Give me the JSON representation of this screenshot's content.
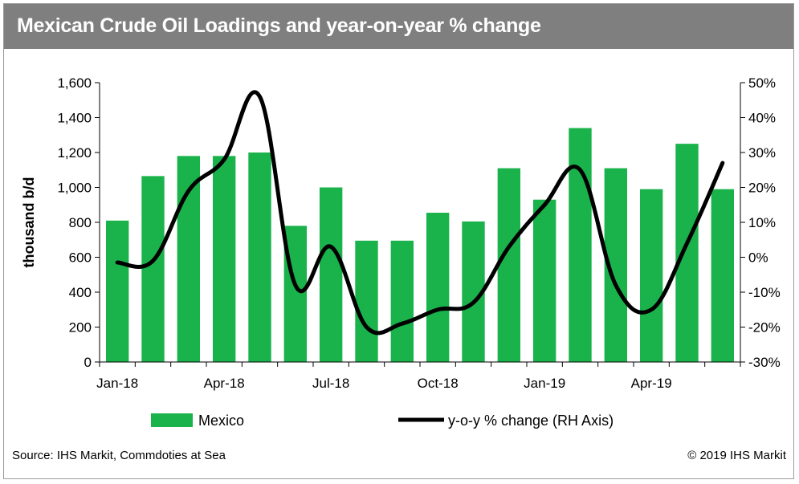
{
  "title": "Mexican Crude Oil  Loadings and year-on-year % change",
  "source": "Source: IHS Markit, Commdoties at Sea",
  "copyright": "© 2019 IHS Markit",
  "colors": {
    "bar": "#1ab24b",
    "line": "#000000",
    "title_bg": "#7f7f7f"
  },
  "chart_data": {
    "type": "bar",
    "ylabel": "thousand b/d",
    "ylim": [
      0,
      1600
    ],
    "y_ticks": [
      "0",
      "200",
      "400",
      "600",
      "800",
      "1,000",
      "1,200",
      "1,400",
      "1,600"
    ],
    "y2lim": [
      -30,
      50
    ],
    "y2_ticks": [
      "-30%",
      "-20%",
      "-10%",
      "0%",
      "10%",
      "20%",
      "30%",
      "40%",
      "50%"
    ],
    "x_tick_labels": [
      "Jan-18",
      "Apr-18",
      "Jul-18",
      "Oct-18",
      "Jan-19",
      "Apr-19"
    ],
    "categories": [
      "Jan-18",
      "Feb-18",
      "Mar-18",
      "Apr-18",
      "May-18",
      "Jun-18",
      "Jul-18",
      "Aug-18",
      "Sep-18",
      "Oct-18",
      "Nov-18",
      "Dec-18",
      "Jan-19",
      "Feb-19",
      "Mar-19",
      "Apr-19",
      "May-19",
      "Jun-19"
    ],
    "legend_position": "bottom",
    "series": [
      {
        "name": "Mexico",
        "type": "bar",
        "axis": "left",
        "values": [
          810,
          1065,
          1180,
          1180,
          1200,
          780,
          1000,
          695,
          695,
          855,
          805,
          1110,
          930,
          1340,
          1110,
          990,
          1250,
          990
        ]
      },
      {
        "name": "y-o-y % change (RH Axis)",
        "type": "line",
        "axis": "right",
        "values": [
          -1.5,
          -1,
          19,
          28,
          46,
          -8,
          3,
          -20,
          -19,
          -15,
          -13,
          3,
          15,
          25,
          -8,
          -15,
          4,
          27
        ]
      }
    ]
  }
}
